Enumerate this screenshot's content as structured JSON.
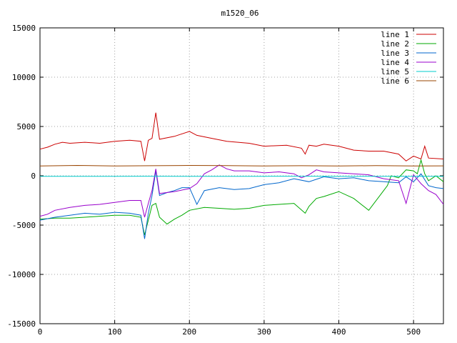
{
  "chart_data": {
    "type": "line",
    "title": "m1520_06",
    "xlim": [
      0,
      540
    ],
    "ylim": [
      -15000,
      15000
    ],
    "grid": true,
    "legend_position": "top-right",
    "x_ticks": [
      "0",
      "100",
      "200",
      "300",
      "400",
      "500"
    ],
    "y_ticks": [
      "15000",
      "10000",
      "5000",
      "0",
      "-5000",
      "-10000",
      "-15000"
    ],
    "x_tick_values": [
      0,
      100,
      200,
      300,
      400,
      500
    ],
    "y_tick_values": [
      15000,
      10000,
      5000,
      0,
      -5000,
      -10000,
      -15000
    ],
    "series": [
      {
        "name": "line 1",
        "color": "#cc0000",
        "x": [
          0,
          10,
          20,
          30,
          40,
          60,
          80,
          100,
          120,
          135,
          140,
          145,
          150,
          155,
          160,
          180,
          200,
          210,
          230,
          250,
          280,
          300,
          330,
          350,
          355,
          360,
          370,
          380,
          400,
          420,
          440,
          460,
          480,
          490,
          500,
          510,
          515,
          520,
          540
        ],
        "y": [
          2700,
          2900,
          3200,
          3400,
          3300,
          3400,
          3300,
          3500,
          3600,
          3500,
          1500,
          3600,
          3800,
          6400,
          3700,
          4000,
          4500,
          4100,
          3800,
          3500,
          3300,
          3000,
          3100,
          2800,
          2200,
          3100,
          3000,
          3200,
          3000,
          2600,
          2500,
          2500,
          2200,
          1500,
          2000,
          1700,
          3000,
          1800,
          1700
        ]
      },
      {
        "name": "line 2",
        "color": "#00aa00",
        "x": [
          0,
          20,
          40,
          60,
          80,
          100,
          120,
          135,
          140,
          145,
          150,
          155,
          160,
          170,
          180,
          190,
          200,
          220,
          240,
          260,
          280,
          300,
          320,
          340,
          355,
          360,
          370,
          380,
          400,
          420,
          440,
          460,
          465,
          470,
          480,
          490,
          500,
          505,
          510,
          515,
          520,
          530,
          540
        ],
        "y": [
          -4400,
          -4300,
          -4300,
          -4200,
          -4100,
          -4000,
          -4000,
          -4200,
          -6000,
          -4500,
          -3000,
          -2800,
          -4200,
          -4900,
          -4400,
          -4000,
          -3500,
          -3200,
          -3300,
          -3400,
          -3300,
          -3000,
          -2900,
          -2800,
          -3800,
          -3100,
          -2300,
          -2100,
          -1600,
          -2300,
          -3500,
          -1500,
          -1000,
          0,
          -200,
          600,
          500,
          200,
          1600,
          200,
          -500,
          0,
          -600
        ]
      },
      {
        "name": "line 3",
        "color": "#0066cc",
        "x": [
          0,
          20,
          40,
          60,
          80,
          100,
          120,
          135,
          140,
          145,
          150,
          155,
          160,
          170,
          180,
          190,
          200,
          210,
          220,
          240,
          260,
          280,
          300,
          320,
          340,
          360,
          380,
          400,
          420,
          440,
          460,
          480,
          490,
          500,
          510,
          520,
          530,
          540
        ],
        "y": [
          -4500,
          -4200,
          -4000,
          -3800,
          -3900,
          -3700,
          -3800,
          -4000,
          -6400,
          -3800,
          -2000,
          500,
          -2000,
          -1700,
          -1500,
          -1200,
          -1200,
          -2900,
          -1500,
          -1200,
          -1400,
          -1300,
          -900,
          -700,
          -300,
          -600,
          -100,
          -300,
          -200,
          -500,
          -600,
          -700,
          -100,
          -600,
          200,
          -1000,
          -1200,
          -1300
        ]
      },
      {
        "name": "line 4",
        "color": "#9900cc",
        "x": [
          0,
          10,
          20,
          40,
          60,
          80,
          100,
          120,
          135,
          140,
          145,
          150,
          155,
          160,
          180,
          200,
          210,
          220,
          230,
          240,
          250,
          260,
          280,
          300,
          320,
          340,
          350,
          360,
          370,
          380,
          400,
          420,
          440,
          460,
          480,
          490,
          500,
          510,
          520,
          530,
          540
        ],
        "y": [
          -4100,
          -3900,
          -3500,
          -3200,
          -3000,
          -2900,
          -2700,
          -2500,
          -2500,
          -4200,
          -2800,
          -1500,
          700,
          -1800,
          -1600,
          -1300,
          -800,
          200,
          600,
          1100,
          700,
          500,
          500,
          300,
          400,
          200,
          -200,
          100,
          600,
          400,
          300,
          200,
          100,
          -300,
          -500,
          -2800,
          100,
          -800,
          -1500,
          -1900,
          -2900
        ]
      },
      {
        "name": "line 5",
        "color": "#00cccc",
        "x": [
          0,
          50,
          100,
          150,
          200,
          250,
          300,
          350,
          400,
          450,
          500,
          540
        ],
        "y": [
          -50,
          -60,
          -50,
          -40,
          -60,
          -50,
          -50,
          -40,
          -60,
          -50,
          -60,
          -50
        ]
      },
      {
        "name": "line 6",
        "color": "#994400",
        "x": [
          0,
          50,
          100,
          150,
          200,
          250,
          300,
          350,
          400,
          450,
          500,
          540
        ],
        "y": [
          1000,
          1050,
          1000,
          1020,
          1050,
          1030,
          1000,
          1020,
          1000,
          1030,
          1000,
          1010
        ]
      }
    ]
  }
}
